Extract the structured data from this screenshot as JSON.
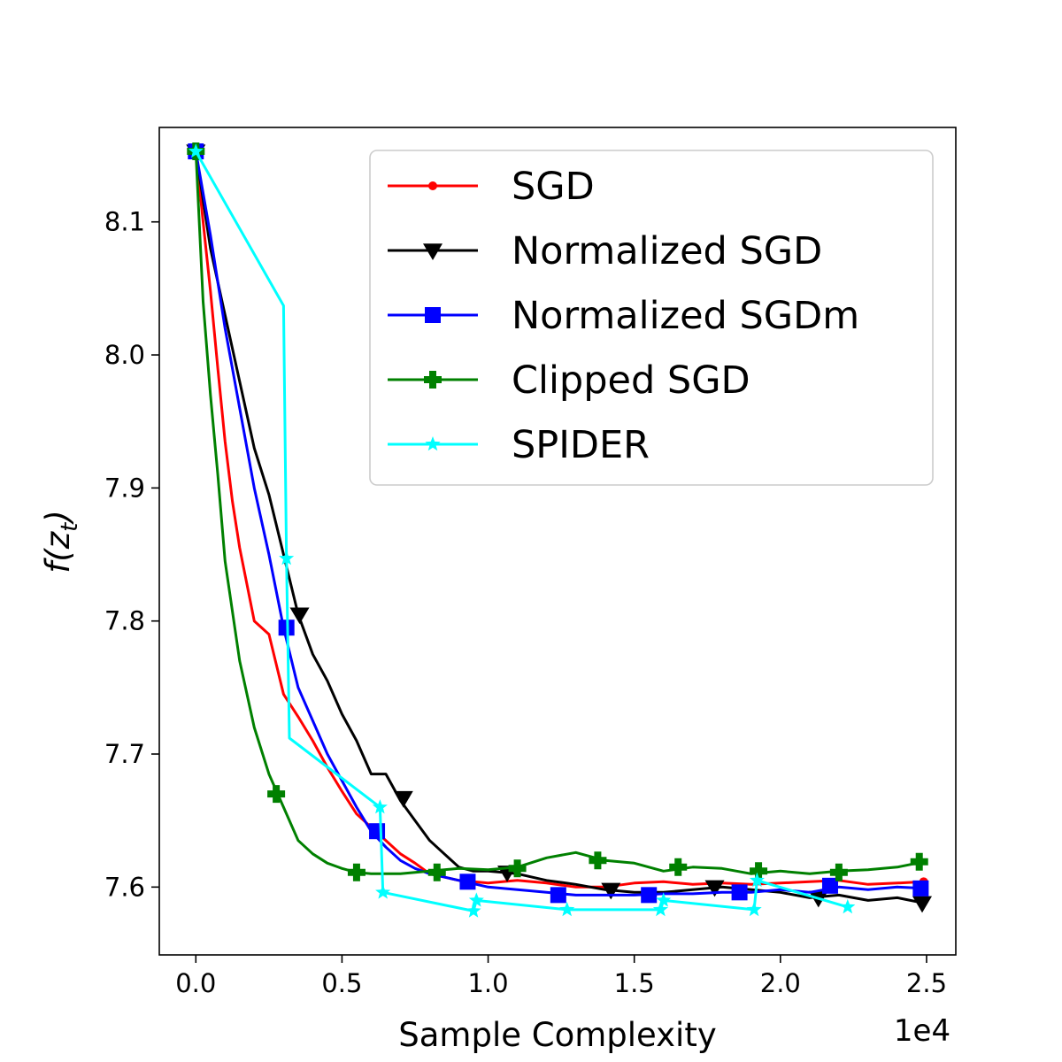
{
  "chart_data": {
    "type": "line",
    "title": "",
    "xlabel": "Sample Complexity",
    "ylabel": "f(z_t)",
    "ylabel_main": "f(z",
    "ylabel_sub": "t",
    "ylabel_close": ")",
    "x_scale_label": "1e4",
    "x_unit": 10000,
    "xlim": [
      -0.125,
      2.6
    ],
    "ylim": [
      7.549,
      8.171
    ],
    "x_ticks": [
      0.0,
      0.5,
      1.0,
      1.5,
      2.0,
      2.5
    ],
    "x_tick_labels": [
      "0.0",
      "0.5",
      "1.0",
      "1.5",
      "2.0",
      "2.5"
    ],
    "y_ticks": [
      7.6,
      7.7,
      7.8,
      7.9,
      8.0,
      8.1
    ],
    "y_tick_labels": [
      "7.6",
      "7.7",
      "7.8",
      "7.9",
      "8.0",
      "8.1"
    ],
    "legend_position": "top-right",
    "series": [
      {
        "name": "SGD",
        "color": "#ff0000",
        "marker": "dot",
        "x": [
          0,
          0.025,
          0.05,
          0.075,
          0.1,
          0.125,
          0.15,
          0.2,
          0.25,
          0.3,
          0.35,
          0.4,
          0.45,
          0.5,
          0.55,
          0.6,
          0.65,
          0.7,
          0.75,
          0.8,
          0.9,
          1.0,
          1.1,
          1.2,
          1.3,
          1.4,
          1.5,
          1.6,
          1.7,
          1.8,
          1.9,
          2.0,
          2.1,
          2.2,
          2.3,
          2.4,
          2.49
        ],
        "y": [
          8.153,
          8.1,
          8.048,
          7.99,
          7.935,
          7.89,
          7.855,
          7.8,
          7.79,
          7.745,
          7.728,
          7.71,
          7.69,
          7.672,
          7.655,
          7.645,
          7.635,
          7.625,
          7.618,
          7.61,
          7.605,
          7.603,
          7.605,
          7.603,
          7.6,
          7.6,
          7.603,
          7.604,
          7.602,
          7.603,
          7.602,
          7.603,
          7.604,
          7.605,
          7.602,
          7.603,
          7.604
        ],
        "marker_x": [
          0,
          2.49
        ],
        "marker_y": [
          8.153,
          7.604
        ]
      },
      {
        "name": "Normalized SGD",
        "color": "#000000",
        "marker": "triangle-down",
        "x": [
          0,
          0.05,
          0.1,
          0.15,
          0.2,
          0.25,
          0.3,
          0.35,
          0.4,
          0.45,
          0.5,
          0.55,
          0.6,
          0.65,
          0.7,
          0.75,
          0.8,
          0.85,
          0.9,
          0.95,
          1.0,
          1.1,
          1.2,
          1.3,
          1.4,
          1.5,
          1.6,
          1.7,
          1.8,
          1.9,
          2.0,
          2.1,
          2.2,
          2.3,
          2.4,
          2.49
        ],
        "y": [
          8.153,
          8.08,
          8.03,
          7.98,
          7.93,
          7.895,
          7.85,
          7.805,
          7.775,
          7.755,
          7.73,
          7.71,
          7.685,
          7.685,
          7.665,
          7.65,
          7.635,
          7.625,
          7.615,
          7.612,
          7.612,
          7.61,
          7.605,
          7.602,
          7.598,
          7.596,
          7.596,
          7.598,
          7.6,
          7.598,
          7.596,
          7.592,
          7.594,
          7.59,
          7.592,
          7.588
        ],
        "marker_x": [
          0,
          0.355,
          0.71,
          1.065,
          1.42,
          1.775,
          2.13,
          2.485
        ],
        "marker_y": [
          8.153,
          7.805,
          7.667,
          7.611,
          7.598,
          7.6,
          7.592,
          7.588
        ]
      },
      {
        "name": "Normalized SGDm",
        "color": "#0000ff",
        "marker": "square",
        "x": [
          0,
          0.05,
          0.1,
          0.15,
          0.2,
          0.25,
          0.3,
          0.35,
          0.4,
          0.45,
          0.5,
          0.55,
          0.6,
          0.65,
          0.7,
          0.75,
          0.8,
          0.9,
          1.0,
          1.1,
          1.2,
          1.3,
          1.4,
          1.5,
          1.6,
          1.7,
          1.8,
          1.9,
          2.0,
          2.1,
          2.2,
          2.3,
          2.4,
          2.49
        ],
        "y": [
          8.153,
          8.09,
          8.02,
          7.96,
          7.9,
          7.85,
          7.795,
          7.75,
          7.725,
          7.7,
          7.68,
          7.66,
          7.642,
          7.63,
          7.62,
          7.614,
          7.61,
          7.605,
          7.6,
          7.598,
          7.596,
          7.594,
          7.594,
          7.594,
          7.595,
          7.595,
          7.596,
          7.596,
          7.598,
          7.596,
          7.6,
          7.598,
          7.6,
          7.599
        ],
        "marker_x": [
          0,
          0.31,
          0.62,
          0.93,
          1.24,
          1.55,
          1.86,
          2.17,
          2.48
        ],
        "marker_y": [
          8.153,
          7.795,
          7.642,
          7.604,
          7.594,
          7.594,
          7.596,
          7.601,
          7.599
        ]
      },
      {
        "name": "Clipped SGD",
        "color": "#008000",
        "marker": "plus",
        "x": [
          0,
          0.025,
          0.05,
          0.075,
          0.1,
          0.15,
          0.2,
          0.25,
          0.3,
          0.35,
          0.4,
          0.45,
          0.5,
          0.55,
          0.6,
          0.7,
          0.8,
          0.9,
          1.0,
          1.1,
          1.2,
          1.3,
          1.4,
          1.5,
          1.6,
          1.7,
          1.8,
          1.9,
          2.0,
          2.1,
          2.2,
          2.3,
          2.4,
          2.49
        ],
        "y": [
          8.153,
          8.04,
          7.97,
          7.91,
          7.845,
          7.77,
          7.72,
          7.685,
          7.66,
          7.635,
          7.625,
          7.618,
          7.614,
          7.611,
          7.61,
          7.61,
          7.612,
          7.614,
          7.613,
          7.615,
          7.622,
          7.626,
          7.62,
          7.618,
          7.612,
          7.615,
          7.614,
          7.61,
          7.612,
          7.61,
          7.612,
          7.613,
          7.615,
          7.619
        ],
        "marker_x": [
          0,
          0.275,
          0.55,
          0.825,
          1.1,
          1.375,
          1.65,
          1.925,
          2.2,
          2.475
        ],
        "marker_y": [
          8.153,
          7.67,
          7.611,
          7.611,
          7.614,
          7.62,
          7.615,
          7.612,
          7.611,
          7.619
        ]
      },
      {
        "name": "SPIDER",
        "color": "#00ffff",
        "marker": "star",
        "x": [
          0,
          0.3,
          0.31,
          0.32,
          0.63,
          0.64,
          0.95,
          0.96,
          1.27,
          1.59,
          1.6,
          1.91,
          1.92,
          2.23
        ],
        "y": [
          8.153,
          8.037,
          7.847,
          7.712,
          7.66,
          7.596,
          7.582,
          7.59,
          7.583,
          7.583,
          7.59,
          7.583,
          7.605,
          7.585
        ],
        "marker_x": [
          0,
          0.31,
          0.63,
          0.64,
          0.95,
          0.96,
          1.27,
          1.59,
          1.6,
          1.91,
          1.92,
          2.23
        ],
        "marker_y": [
          8.153,
          7.847,
          7.66,
          7.596,
          7.582,
          7.59,
          7.583,
          7.583,
          7.59,
          7.583,
          7.605,
          7.585
        ]
      }
    ]
  }
}
